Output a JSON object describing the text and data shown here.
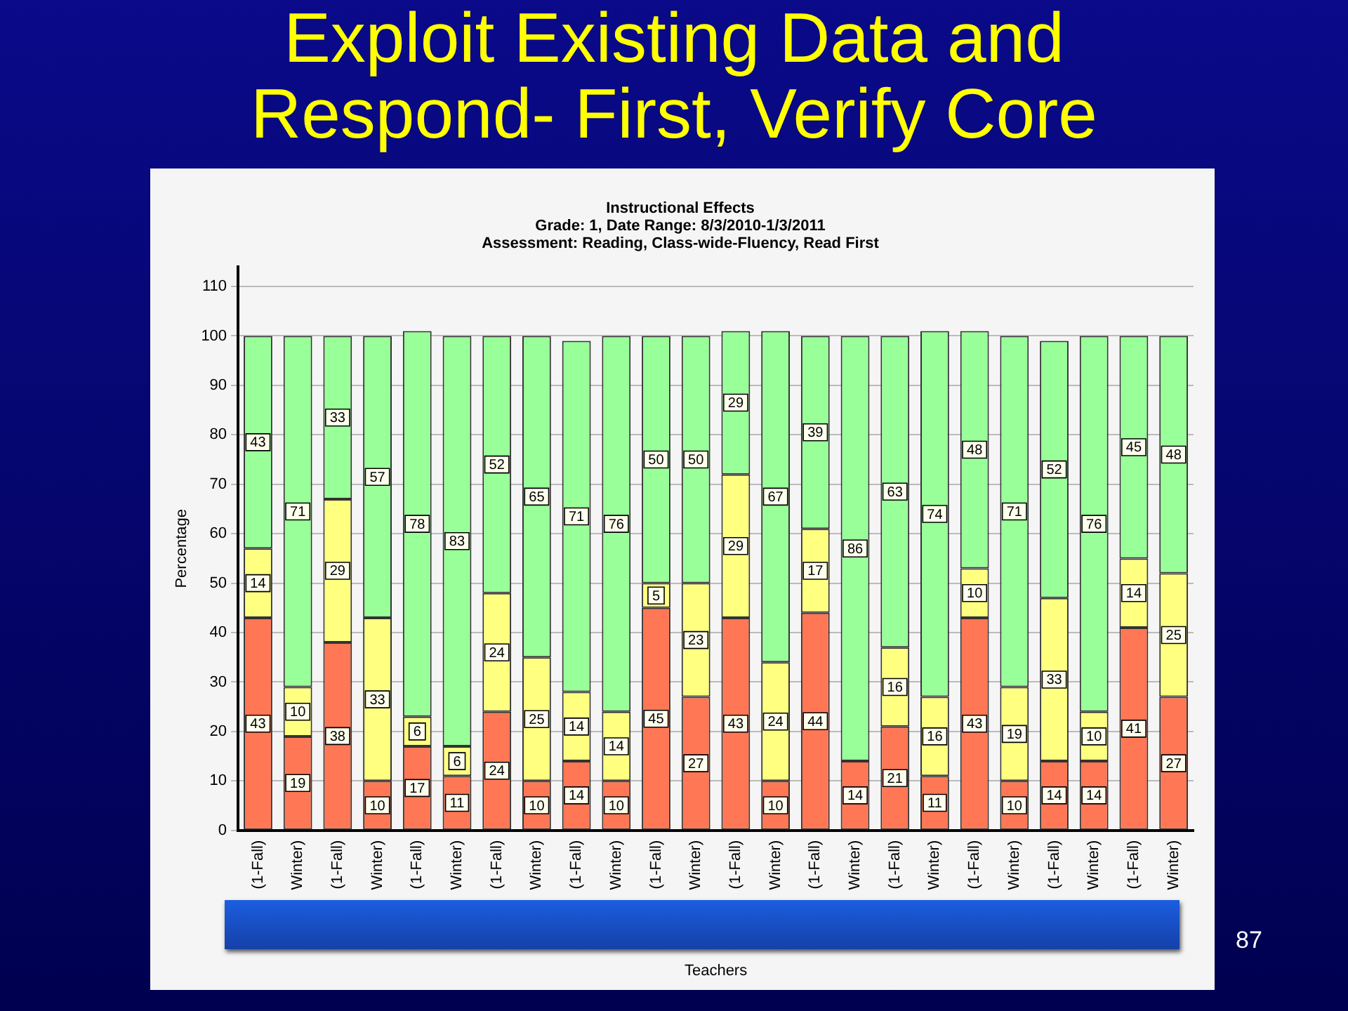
{
  "chart_data": {
    "type": "bar",
    "title": "Exploit Existing Data and Respond- First, Verify Core",
    "subtitle": "Instructional Effects\nGrade: 1, Date Range: 8/3/2010-1/3/2011\nAssessment: Reading, Class-wide-Fluency, Read First",
    "xlabel": "Teachers",
    "ylabel": "Percentage",
    "categories": [
      "(1-Fall)",
      "Winter)",
      "(1-Fall)",
      "Winter)",
      "(1-Fall)",
      "Winter)",
      "(1-Fall)",
      "Winter)",
      "(1-Fall)",
      "Winter)",
      "(1-Fall)",
      "Winter)",
      "(1-Fall)",
      "Winter)",
      "(1-Fall)",
      "Winter)",
      "(1-Fall)",
      "Winter)",
      "(1-Fall)",
      "Winter)",
      "(1-Fall)",
      "Winter)",
      "(1-Fall)",
      "Winter)"
    ],
    "series": [
      {
        "color": "#ff7755",
        "values": [
          43,
          19,
          38,
          10,
          17,
          11,
          24,
          10,
          14,
          10,
          45,
          27,
          43,
          10,
          44,
          14,
          21,
          11,
          43,
          10,
          14,
          14,
          41,
          27
        ]
      },
      {
        "color": "#ffff80",
        "values": [
          14,
          10,
          29,
          33,
          6,
          6,
          24,
          25,
          14,
          14,
          5,
          23,
          29,
          24,
          17,
          null,
          16,
          16,
          10,
          19,
          33,
          10,
          14,
          25
        ]
      },
      {
        "color": "#99ff99",
        "values": [
          43,
          71,
          33,
          57,
          78,
          83,
          52,
          65,
          71,
          76,
          50,
          50,
          29,
          67,
          39,
          86,
          63,
          74,
          48,
          71,
          52,
          76,
          45,
          48
        ]
      }
    ],
    "stacked": true,
    "data_labels": true,
    "ylim": [
      0,
      114
    ],
    "yticks": [
      0,
      10,
      20,
      30,
      40,
      50,
      60,
      70,
      80,
      90,
      100,
      110
    ],
    "grid": "y",
    "annotations": [
      "87"
    ]
  }
}
